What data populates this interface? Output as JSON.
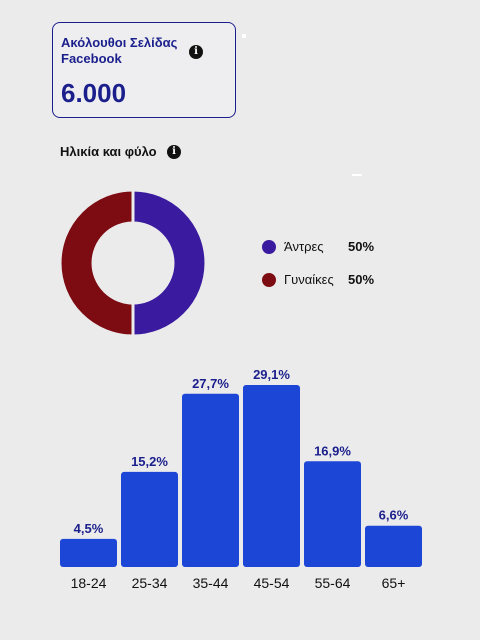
{
  "card": {
    "title": "Ακόλουθοι Σελίδας Facebook",
    "value": "6.000",
    "info_glyph": "i",
    "info_icon": "info-icon"
  },
  "section": {
    "title": "Ηλικία και φύλο",
    "info_glyph": "i",
    "info_icon": "info-icon"
  },
  "colors": {
    "accent": "#1a1f8c",
    "men": "#3a1a9e",
    "women": "#7d0b12",
    "bar": "#1b46d6",
    "background": "#ecebec"
  },
  "chart_data": [
    {
      "type": "pie",
      "variant": "donut",
      "categories": [
        "Άντρες",
        "Γυναίκες"
      ],
      "values": [
        50,
        50
      ],
      "value_labels": [
        "50%",
        "50%"
      ],
      "colors": [
        "#3a1a9e",
        "#7d0b12"
      ],
      "legend": "right"
    },
    {
      "type": "bar",
      "categories": [
        "18-24",
        "25-34",
        "35-44",
        "45-54",
        "55-64",
        "65+"
      ],
      "values": [
        4.5,
        15.2,
        27.7,
        29.1,
        16.9,
        6.6
      ],
      "value_labels": [
        "4,5%",
        "15,2%",
        "27,7%",
        "29,1%",
        "16,9%",
        "6,6%"
      ],
      "color": "#1b46d6",
      "grid": false,
      "ylim": [
        0,
        29.1
      ]
    }
  ]
}
